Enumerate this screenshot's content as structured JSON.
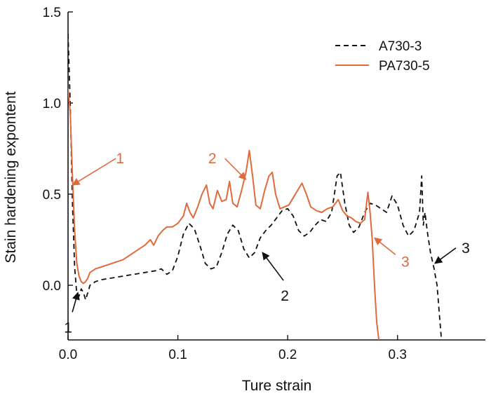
{
  "chart_data": {
    "type": "line",
    "xlabel": "Ture strain",
    "ylabel": "Stain hardening expontent",
    "xlim": [
      0.0,
      0.38
    ],
    "ylim": [
      -0.3,
      1.5
    ],
    "xticks": [
      {
        "value": 0.0,
        "label": "0.0"
      },
      {
        "value": 0.1,
        "label": "0.1"
      },
      {
        "value": 0.2,
        "label": "0.2"
      },
      {
        "value": 0.3,
        "label": "0.3"
      }
    ],
    "yticks": [
      {
        "value": 0.0,
        "label": "0.0"
      },
      {
        "value": 0.5,
        "label": "0.5"
      },
      {
        "value": 1.0,
        "label": "1.0"
      },
      {
        "value": 1.5,
        "label": "1.5"
      }
    ],
    "legend_position": "top-right",
    "grid": false,
    "series": [
      {
        "name": "A730-3",
        "color": "#111111",
        "style": "dashed",
        "x": [
          0.0,
          0.002,
          0.004,
          0.006,
          0.008,
          0.01,
          0.012,
          0.014,
          0.016,
          0.018,
          0.02,
          0.025,
          0.03,
          0.04,
          0.05,
          0.06,
          0.07,
          0.08,
          0.085,
          0.09,
          0.095,
          0.1,
          0.105,
          0.11,
          0.115,
          0.12,
          0.125,
          0.13,
          0.135,
          0.14,
          0.145,
          0.15,
          0.155,
          0.16,
          0.165,
          0.17,
          0.175,
          0.18,
          0.185,
          0.19,
          0.195,
          0.2,
          0.205,
          0.21,
          0.215,
          0.22,
          0.225,
          0.23,
          0.235,
          0.24,
          0.245,
          0.248,
          0.252,
          0.256,
          0.26,
          0.265,
          0.27,
          0.275,
          0.28,
          0.285,
          0.29,
          0.295,
          0.3,
          0.305,
          0.31,
          0.315,
          0.32,
          0.322,
          0.3235,
          0.325,
          0.327,
          0.33,
          0.333,
          0.336,
          0.338,
          0.34
        ],
        "y": [
          1.38,
          1.0,
          0.45,
          0.1,
          -0.05,
          -0.06,
          -0.02,
          -0.04,
          -0.08,
          -0.04,
          0.0,
          0.02,
          0.03,
          0.04,
          0.05,
          0.06,
          0.07,
          0.08,
          0.09,
          0.06,
          0.08,
          0.16,
          0.28,
          0.34,
          0.31,
          0.22,
          0.12,
          0.09,
          0.1,
          0.18,
          0.28,
          0.33,
          0.3,
          0.2,
          0.15,
          0.18,
          0.26,
          0.3,
          0.33,
          0.37,
          0.41,
          0.42,
          0.38,
          0.3,
          0.27,
          0.29,
          0.33,
          0.36,
          0.35,
          0.4,
          0.6,
          0.62,
          0.45,
          0.33,
          0.29,
          0.32,
          0.4,
          0.45,
          0.44,
          0.42,
          0.4,
          0.49,
          0.44,
          0.33,
          0.27,
          0.3,
          0.4,
          0.6,
          0.33,
          0.4,
          0.3,
          0.18,
          0.1,
          0.0,
          -0.15,
          -0.3
        ]
      },
      {
        "name": "PA730-5",
        "color": "#e06a3c",
        "style": "solid",
        "x": [
          0.0,
          0.002,
          0.004,
          0.006,
          0.008,
          0.01,
          0.012,
          0.014,
          0.016,
          0.018,
          0.02,
          0.025,
          0.03,
          0.04,
          0.05,
          0.06,
          0.07,
          0.075,
          0.078,
          0.082,
          0.086,
          0.09,
          0.095,
          0.1,
          0.105,
          0.108,
          0.111,
          0.114,
          0.118,
          0.122,
          0.126,
          0.129,
          0.132,
          0.136,
          0.14,
          0.144,
          0.147,
          0.15,
          0.154,
          0.158,
          0.162,
          0.165,
          0.168,
          0.171,
          0.175,
          0.179,
          0.183,
          0.186,
          0.189,
          0.193,
          0.197,
          0.201,
          0.205,
          0.209,
          0.213,
          0.217,
          0.221,
          0.226,
          0.231,
          0.236,
          0.241,
          0.246,
          0.25,
          0.254,
          0.258,
          0.262,
          0.266,
          0.27,
          0.273,
          0.275,
          0.277,
          0.279,
          0.281,
          0.283
        ],
        "y": [
          1.08,
          0.95,
          0.6,
          0.3,
          0.12,
          0.05,
          0.02,
          0.01,
          0.02,
          0.04,
          0.07,
          0.09,
          0.1,
          0.12,
          0.14,
          0.18,
          0.22,
          0.25,
          0.22,
          0.27,
          0.3,
          0.32,
          0.32,
          0.34,
          0.38,
          0.45,
          0.4,
          0.37,
          0.43,
          0.5,
          0.55,
          0.45,
          0.42,
          0.52,
          0.46,
          0.47,
          0.57,
          0.45,
          0.43,
          0.52,
          0.62,
          0.74,
          0.6,
          0.44,
          0.42,
          0.52,
          0.6,
          0.62,
          0.5,
          0.42,
          0.43,
          0.44,
          0.48,
          0.52,
          0.56,
          0.5,
          0.43,
          0.41,
          0.4,
          0.42,
          0.43,
          0.47,
          0.41,
          0.38,
          0.37,
          0.35,
          0.34,
          0.36,
          0.51,
          0.4,
          0.25,
          0.0,
          -0.2,
          -0.3
        ]
      }
    ],
    "annotations": [
      {
        "text": "1",
        "color": "#e06a3c",
        "x": 0.004,
        "y": 0.55
      },
      {
        "text": "2",
        "color": "#e06a3c",
        "x": 0.162,
        "y": 0.58
      },
      {
        "text": "3",
        "color": "#e06a3c",
        "x": 0.279,
        "y": 0.26
      },
      {
        "text": "1",
        "color": "#111111",
        "x": 0.009,
        "y": -0.04
      },
      {
        "text": "2",
        "color": "#111111",
        "x": 0.177,
        "y": 0.18
      },
      {
        "text": "3",
        "color": "#111111",
        "x": 0.334,
        "y": 0.12
      }
    ]
  }
}
